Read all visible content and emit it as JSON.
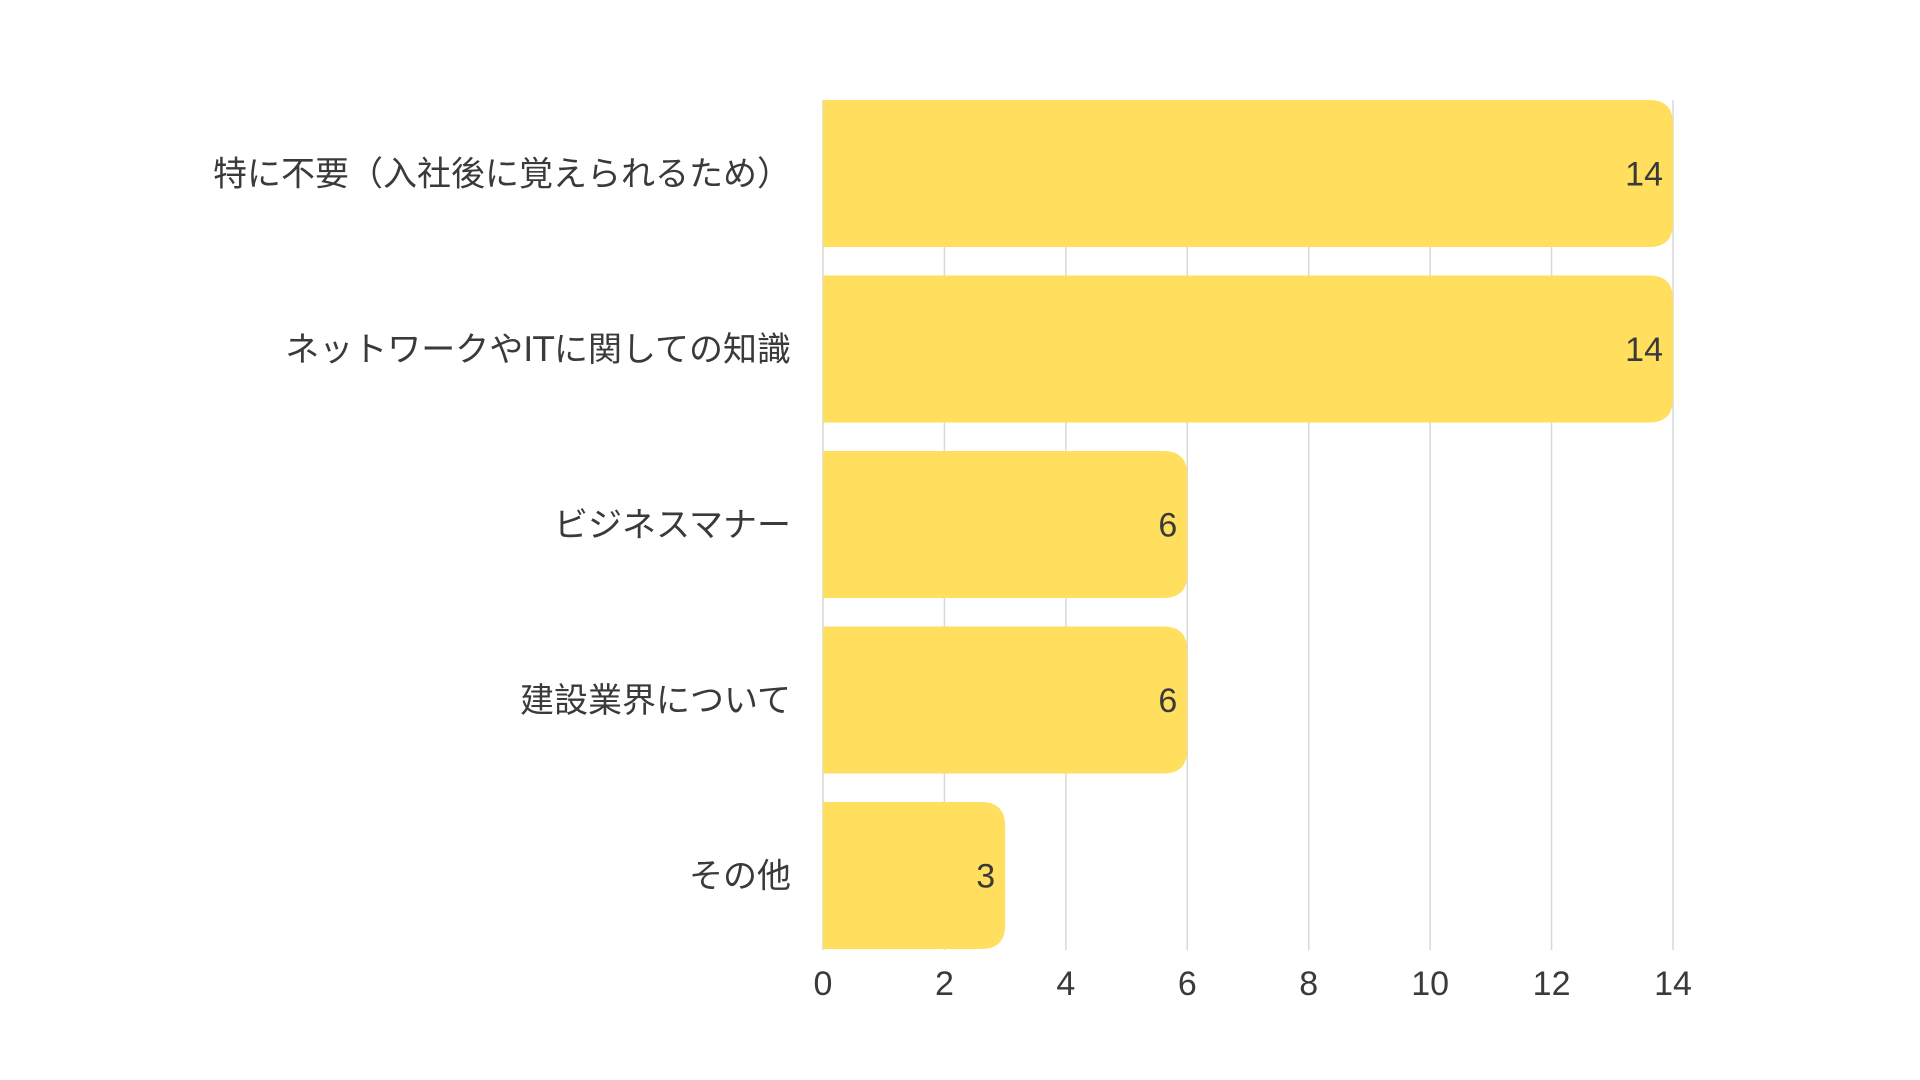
{
  "chart_data": {
    "type": "bar",
    "orientation": "horizontal",
    "categories": [
      "特に不要（入社後に覚えられるため）",
      "ネットワークやITに関しての知識",
      "ビジネスマナー",
      "建設業界について",
      "その他"
    ],
    "values": [
      14,
      14,
      6,
      6,
      3
    ],
    "xlim": [
      0,
      14
    ],
    "xticks": [
      0,
      2,
      4,
      6,
      8,
      10,
      12,
      14
    ],
    "grid": true,
    "data_labels": true,
    "title": "",
    "xlabel": "",
    "ylabel": "",
    "bar_color": "#ffdf5d",
    "grid_color": "#d9d9d9",
    "text_color": "#3a3a3a"
  }
}
